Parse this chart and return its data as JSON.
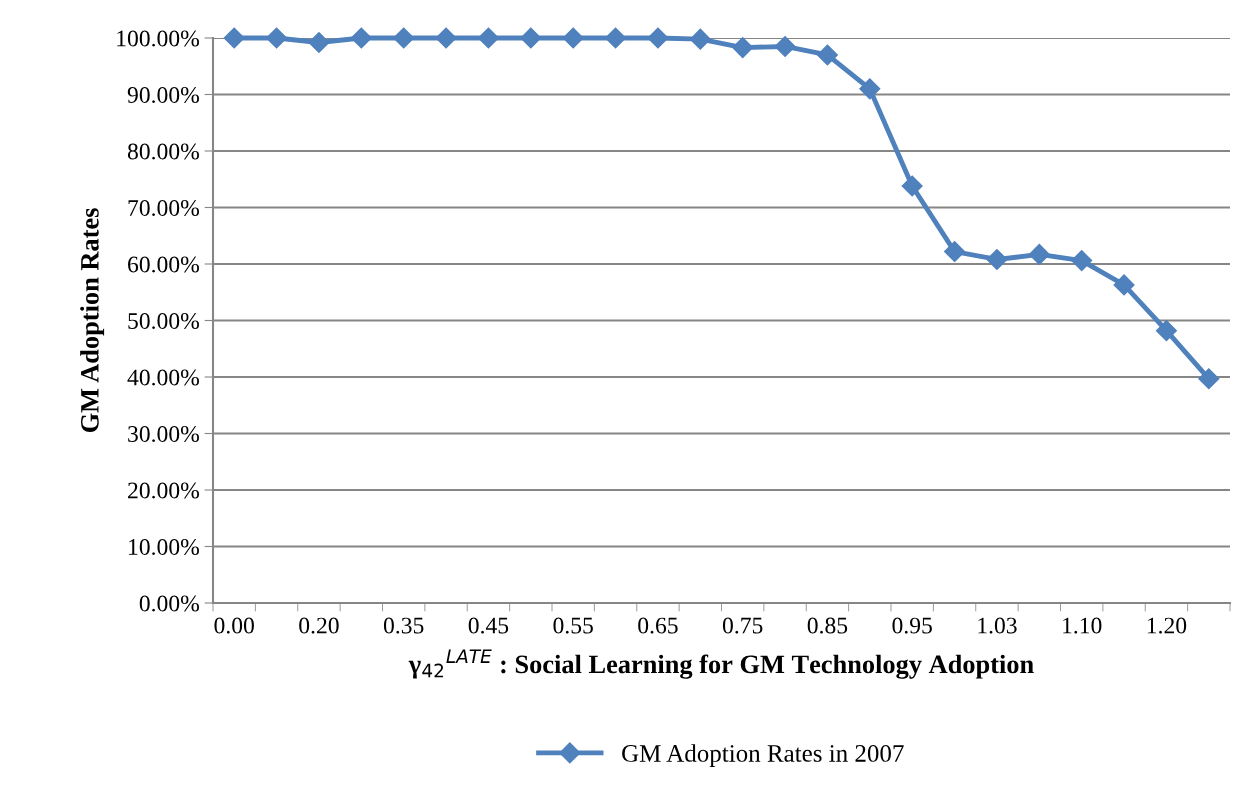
{
  "chart_data": {
    "type": "line",
    "xlabel": "γ$_{42}$$^{LATE}$ : Social Learning for GM Technology Adoption",
    "ylabel": "GM Adoption Rates",
    "categories": [
      "0.00",
      null,
      "0.20",
      null,
      "0.35",
      null,
      "0.45",
      null,
      "0.55",
      null,
      "0.65",
      null,
      "0.75",
      null,
      "0.85",
      null,
      "0.95",
      null,
      "1.03",
      null,
      "1.10",
      null,
      "1.20",
      null
    ],
    "series": [
      {
        "name": "GM Adoption Rates in 2007",
        "color": "#4f81bd",
        "values": [
          100,
          100,
          99.2,
          100,
          100,
          100,
          100,
          100,
          100,
          100,
          100,
          99.8,
          98.3,
          98.5,
          97,
          91,
          73.8,
          62.2,
          60.8,
          61.7,
          60.6,
          56.3,
          48.2,
          39.7
        ]
      }
    ],
    "ylim": [
      0,
      100
    ],
    "yticks": [
      {
        "value": 0,
        "label": "0.00%"
      },
      {
        "value": 10,
        "label": "10.00%"
      },
      {
        "value": 20,
        "label": "20.00%"
      },
      {
        "value": 30,
        "label": "30.00%"
      },
      {
        "value": 40,
        "label": "40.00%"
      },
      {
        "value": 50,
        "label": "50.00%"
      },
      {
        "value": 60,
        "label": "60.00%"
      },
      {
        "value": 70,
        "label": "70.00%"
      },
      {
        "value": 80,
        "label": "80.00%"
      },
      {
        "value": 90,
        "label": "90.00%"
      },
      {
        "value": 100,
        "label": "100.00%"
      }
    ],
    "grid": "y",
    "legend": "bottom",
    "marker": "diamond",
    "line_style": "solid"
  }
}
